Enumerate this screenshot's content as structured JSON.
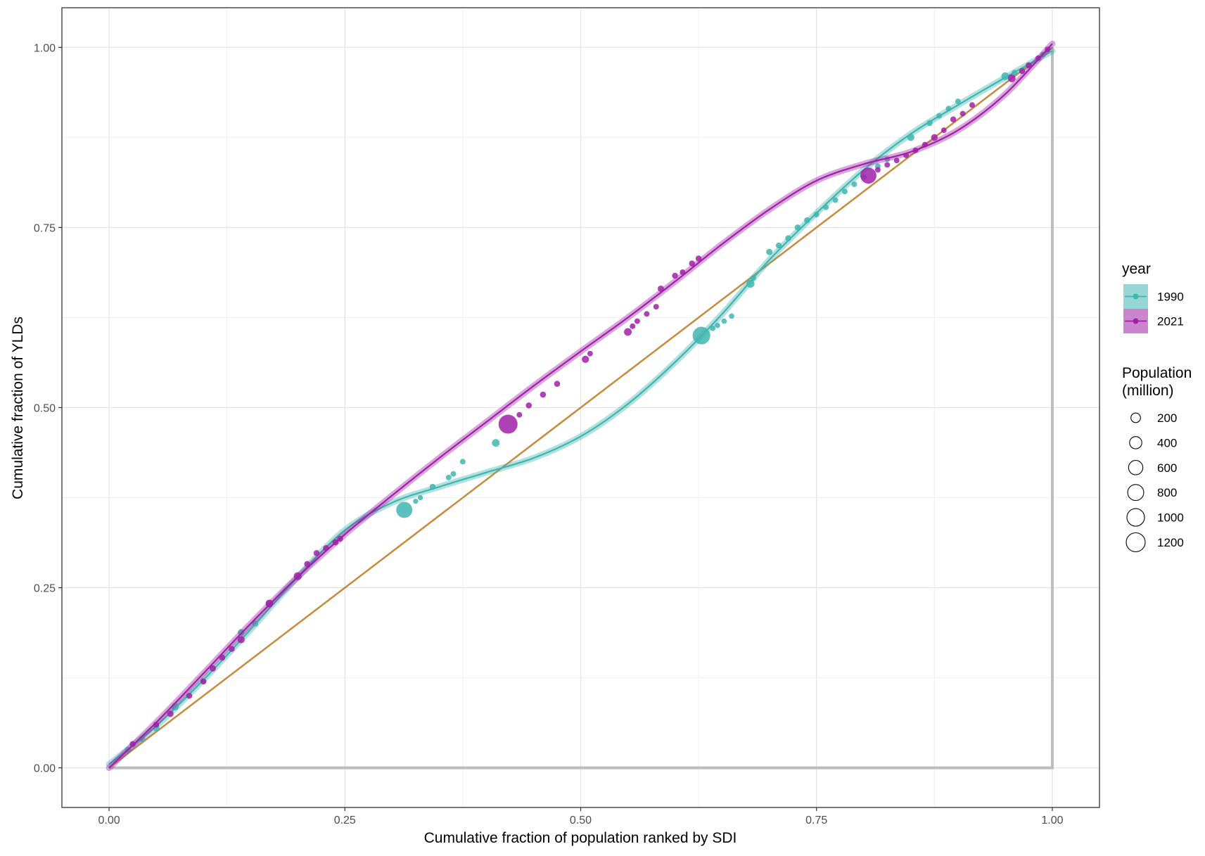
{
  "chart_data": {
    "type": "scatter",
    "xlabel": "Cumulative fraction of population ranked by SDI",
    "ylabel": "Cumulative fraction of YLDs",
    "xlim": [
      -0.05,
      1.05
    ],
    "ylim": [
      -0.055,
      1.055
    ],
    "x_ticks": [
      "0.00",
      "0.25",
      "0.50",
      "0.75",
      "1.00"
    ],
    "y_ticks": [
      "0.00",
      "0.25",
      "0.50",
      "0.75",
      "1.00"
    ],
    "grid": true,
    "legend_position": "right",
    "legend": {
      "color_title": "year",
      "size_title_lines": [
        "Population",
        "(million)"
      ],
      "size_breaks": [
        "200",
        "400",
        "600",
        "800",
        "1000",
        "1200"
      ]
    },
    "equality_line": {
      "color": "#c88a3c",
      "points": [
        [
          0,
          0
        ],
        [
          1,
          1
        ]
      ]
    },
    "reference_frame": {
      "color": "#bdbdbd",
      "points": [
        [
          0,
          0
        ],
        [
          1,
          0
        ],
        [
          1,
          1
        ]
      ]
    },
    "series": [
      {
        "name": "1990",
        "color": "#3fb5b0",
        "curve": [
          [
            0,
            0.005
          ],
          [
            0.05,
            0.058
          ],
          [
            0.1,
            0.122
          ],
          [
            0.15,
            0.192
          ],
          [
            0.2,
            0.265
          ],
          [
            0.25,
            0.33
          ],
          [
            0.3,
            0.368
          ],
          [
            0.35,
            0.39
          ],
          [
            0.4,
            0.41
          ],
          [
            0.45,
            0.43
          ],
          [
            0.5,
            0.46
          ],
          [
            0.55,
            0.505
          ],
          [
            0.6,
            0.563
          ],
          [
            0.65,
            0.63
          ],
          [
            0.7,
            0.705
          ],
          [
            0.75,
            0.77
          ],
          [
            0.8,
            0.83
          ],
          [
            0.85,
            0.88
          ],
          [
            0.9,
            0.92
          ],
          [
            0.95,
            0.958
          ],
          [
            1.0,
            0.995
          ]
        ],
        "points": [
          {
            "x": 0.02,
            "y": 0.025,
            "pop": 40
          },
          {
            "x": 0.035,
            "y": 0.04,
            "pop": 40
          },
          {
            "x": 0.05,
            "y": 0.055,
            "pop": 60
          },
          {
            "x": 0.07,
            "y": 0.085,
            "pop": 90
          },
          {
            "x": 0.1,
            "y": 0.12,
            "pop": 40
          },
          {
            "x": 0.14,
            "y": 0.188,
            "pop": 60
          },
          {
            "x": 0.155,
            "y": 0.2,
            "pop": 40
          },
          {
            "x": 0.17,
            "y": 0.228,
            "pop": 80
          },
          {
            "x": 0.313,
            "y": 0.358,
            "pop": 800
          },
          {
            "x": 0.325,
            "y": 0.37,
            "pop": 20
          },
          {
            "x": 0.33,
            "y": 0.375,
            "pop": 20
          },
          {
            "x": 0.343,
            "y": 0.39,
            "pop": 40
          },
          {
            "x": 0.36,
            "y": 0.403,
            "pop": 30
          },
          {
            "x": 0.365,
            "y": 0.408,
            "pop": 30
          },
          {
            "x": 0.375,
            "y": 0.425,
            "pop": 30
          },
          {
            "x": 0.41,
            "y": 0.451,
            "pop": 100
          },
          {
            "x": 0.628,
            "y": 0.6,
            "pop": 1000
          },
          {
            "x": 0.64,
            "y": 0.61,
            "pop": 25
          },
          {
            "x": 0.645,
            "y": 0.614,
            "pop": 25
          },
          {
            "x": 0.652,
            "y": 0.62,
            "pop": 25
          },
          {
            "x": 0.66,
            "y": 0.627,
            "pop": 25
          },
          {
            "x": 0.68,
            "y": 0.672,
            "pop": 120
          },
          {
            "x": 0.683,
            "y": 0.68,
            "pop": 30
          },
          {
            "x": 0.7,
            "y": 0.716,
            "pop": 50
          },
          {
            "x": 0.71,
            "y": 0.725,
            "pop": 40
          },
          {
            "x": 0.72,
            "y": 0.735,
            "pop": 40
          },
          {
            "x": 0.73,
            "y": 0.75,
            "pop": 40
          },
          {
            "x": 0.74,
            "y": 0.76,
            "pop": 40
          },
          {
            "x": 0.75,
            "y": 0.768,
            "pop": 30
          },
          {
            "x": 0.76,
            "y": 0.778,
            "pop": 30
          },
          {
            "x": 0.77,
            "y": 0.788,
            "pop": 30
          },
          {
            "x": 0.78,
            "y": 0.8,
            "pop": 30
          },
          {
            "x": 0.79,
            "y": 0.81,
            "pop": 30
          },
          {
            "x": 0.8,
            "y": 0.82,
            "pop": 30
          },
          {
            "x": 0.815,
            "y": 0.835,
            "pop": 30
          },
          {
            "x": 0.825,
            "y": 0.845,
            "pop": 30
          },
          {
            "x": 0.85,
            "y": 0.875,
            "pop": 80
          },
          {
            "x": 0.87,
            "y": 0.895,
            "pop": 40
          },
          {
            "x": 0.88,
            "y": 0.905,
            "pop": 30
          },
          {
            "x": 0.89,
            "y": 0.915,
            "pop": 30
          },
          {
            "x": 0.9,
            "y": 0.925,
            "pop": 30
          },
          {
            "x": 0.95,
            "y": 0.96,
            "pop": 100
          },
          {
            "x": 0.96,
            "y": 0.965,
            "pop": 30
          },
          {
            "x": 0.975,
            "y": 0.975,
            "pop": 30
          },
          {
            "x": 0.99,
            "y": 0.99,
            "pop": 30
          }
        ]
      },
      {
        "name": "2021",
        "color": "#a020a8",
        "curve": [
          [
            0,
            0
          ],
          [
            0.05,
            0.063
          ],
          [
            0.1,
            0.131
          ],
          [
            0.15,
            0.2
          ],
          [
            0.2,
            0.265
          ],
          [
            0.25,
            0.324
          ],
          [
            0.3,
            0.378
          ],
          [
            0.35,
            0.43
          ],
          [
            0.4,
            0.48
          ],
          [
            0.45,
            0.53
          ],
          [
            0.5,
            0.578
          ],
          [
            0.55,
            0.625
          ],
          [
            0.6,
            0.675
          ],
          [
            0.65,
            0.727
          ],
          [
            0.7,
            0.775
          ],
          [
            0.75,
            0.815
          ],
          [
            0.8,
            0.838
          ],
          [
            0.85,
            0.855
          ],
          [
            0.9,
            0.885
          ],
          [
            0.95,
            0.935
          ],
          [
            1.0,
            1.005
          ]
        ],
        "points": [
          {
            "x": 0.025,
            "y": 0.033,
            "pop": 40
          },
          {
            "x": 0.05,
            "y": 0.06,
            "pop": 40
          },
          {
            "x": 0.065,
            "y": 0.075,
            "pop": 50
          },
          {
            "x": 0.085,
            "y": 0.1,
            "pop": 40
          },
          {
            "x": 0.1,
            "y": 0.12,
            "pop": 40
          },
          {
            "x": 0.11,
            "y": 0.138,
            "pop": 50
          },
          {
            "x": 0.12,
            "y": 0.153,
            "pop": 40
          },
          {
            "x": 0.13,
            "y": 0.165,
            "pop": 40
          },
          {
            "x": 0.14,
            "y": 0.178,
            "pop": 80
          },
          {
            "x": 0.17,
            "y": 0.228,
            "pop": 100
          },
          {
            "x": 0.2,
            "y": 0.266,
            "pop": 110
          },
          {
            "x": 0.21,
            "y": 0.283,
            "pop": 40
          },
          {
            "x": 0.22,
            "y": 0.298,
            "pop": 40
          },
          {
            "x": 0.23,
            "y": 0.305,
            "pop": 40
          },
          {
            "x": 0.24,
            "y": 0.313,
            "pop": 40
          },
          {
            "x": 0.245,
            "y": 0.318,
            "pop": 40
          },
          {
            "x": 0.423,
            "y": 0.477,
            "pop": 1200
          },
          {
            "x": 0.435,
            "y": 0.49,
            "pop": 30
          },
          {
            "x": 0.445,
            "y": 0.503,
            "pop": 40
          },
          {
            "x": 0.46,
            "y": 0.518,
            "pop": 40
          },
          {
            "x": 0.475,
            "y": 0.533,
            "pop": 40
          },
          {
            "x": 0.505,
            "y": 0.567,
            "pop": 80
          },
          {
            "x": 0.51,
            "y": 0.575,
            "pop": 30
          },
          {
            "x": 0.55,
            "y": 0.605,
            "pop": 100
          },
          {
            "x": 0.555,
            "y": 0.613,
            "pop": 30
          },
          {
            "x": 0.56,
            "y": 0.62,
            "pop": 30
          },
          {
            "x": 0.57,
            "y": 0.63,
            "pop": 30
          },
          {
            "x": 0.58,
            "y": 0.64,
            "pop": 30
          },
          {
            "x": 0.585,
            "y": 0.665,
            "pop": 50
          },
          {
            "x": 0.6,
            "y": 0.683,
            "pop": 40
          },
          {
            "x": 0.608,
            "y": 0.688,
            "pop": 30
          },
          {
            "x": 0.618,
            "y": 0.7,
            "pop": 40
          },
          {
            "x": 0.625,
            "y": 0.707,
            "pop": 40
          },
          {
            "x": 0.805,
            "y": 0.822,
            "pop": 800
          },
          {
            "x": 0.815,
            "y": 0.83,
            "pop": 30
          },
          {
            "x": 0.825,
            "y": 0.837,
            "pop": 30
          },
          {
            "x": 0.835,
            "y": 0.843,
            "pop": 30
          },
          {
            "x": 0.845,
            "y": 0.85,
            "pop": 30
          },
          {
            "x": 0.855,
            "y": 0.857,
            "pop": 30
          },
          {
            "x": 0.865,
            "y": 0.865,
            "pop": 30
          },
          {
            "x": 0.875,
            "y": 0.875,
            "pop": 60
          },
          {
            "x": 0.885,
            "y": 0.885,
            "pop": 30
          },
          {
            "x": 0.895,
            "y": 0.9,
            "pop": 40
          },
          {
            "x": 0.905,
            "y": 0.908,
            "pop": 30
          },
          {
            "x": 0.915,
            "y": 0.92,
            "pop": 30
          },
          {
            "x": 0.957,
            "y": 0.957,
            "pop": 100
          },
          {
            "x": 0.968,
            "y": 0.967,
            "pop": 40
          },
          {
            "x": 0.975,
            "y": 0.975,
            "pop": 40
          },
          {
            "x": 0.985,
            "y": 0.985,
            "pop": 30
          },
          {
            "x": 0.995,
            "y": 0.997,
            "pop": 30
          }
        ]
      }
    ]
  }
}
